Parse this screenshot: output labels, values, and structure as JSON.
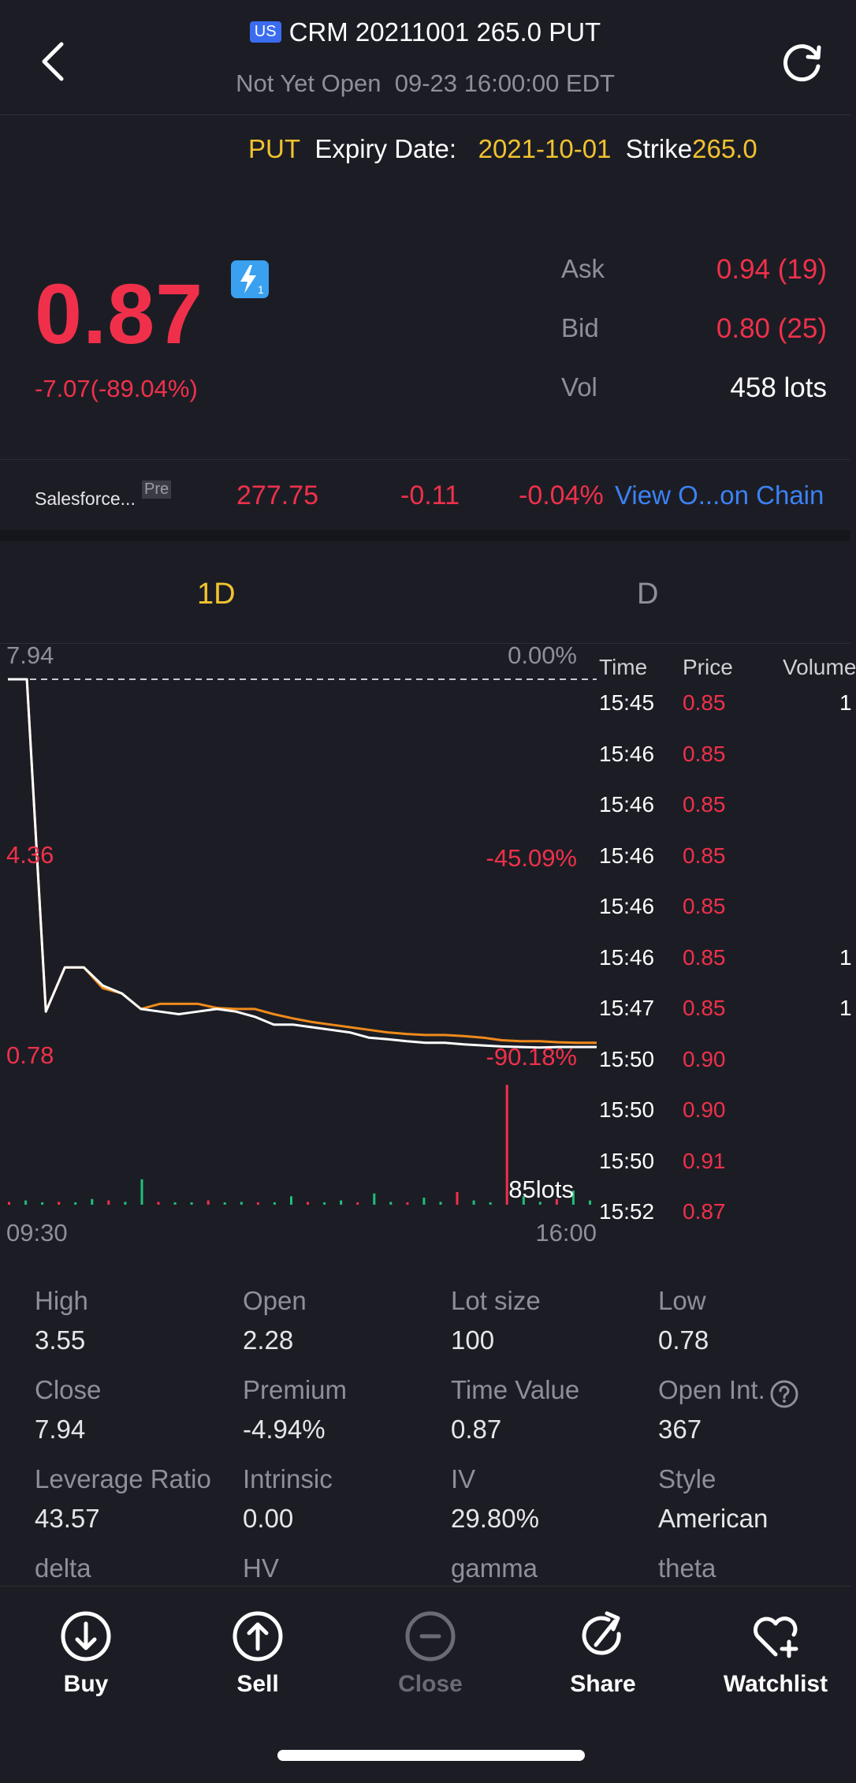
{
  "header": {
    "market_badge": "US",
    "title": "CRM 20211001 265.0 PUT",
    "status": "Not Yet Open",
    "datetime": "09-23 16:00:00 EDT"
  },
  "contract": {
    "type": "PUT",
    "expiry_label": "Expiry Date:",
    "expiry_value": "2021-10-01",
    "strike_label": "Strike",
    "strike_value": "265.0"
  },
  "quote": {
    "last": "0.87",
    "change": "-7.07(-89.04%)",
    "ask_label": "Ask",
    "ask_value": "0.94 (19)",
    "bid_label": "Bid",
    "bid_value": "0.80 (25)",
    "vol_label": "Vol",
    "vol_value": "458 lots",
    "lightning_badge": "1"
  },
  "underlying": {
    "name": "Salesforce...",
    "session_badge": "Pre",
    "price": "277.75",
    "change": "-0.11",
    "change_pct": "-0.04%",
    "chain_link": "View O...on Chain"
  },
  "tabs": [
    {
      "label": "1D",
      "active": true
    },
    {
      "label": "D",
      "active": false
    }
  ],
  "chart": {
    "y_top_label": "7.94",
    "y_top_pct": "0.00%",
    "y_mid_label": "4.36",
    "y_mid_pct": "-45.09%",
    "y_bottom_label": "0.78",
    "y_bottom_pct": "-90.18%",
    "volume_label": "85lots",
    "x_start": "09:30",
    "x_end": "16:00"
  },
  "chart_data": {
    "type": "line",
    "ylim": [
      0.78,
      7.94
    ],
    "prev_close": 7.94,
    "x_labels": [
      "09:30",
      "16:00"
    ],
    "series": [
      {
        "values": [
          7.94,
          7.94,
          1.55,
          2.4,
          2.4,
          2.0,
          1.9,
          1.6,
          1.7,
          1.7,
          1.7,
          1.62,
          1.6,
          1.6,
          1.5,
          1.42,
          1.35,
          1.3,
          1.25,
          1.2,
          1.15,
          1.12,
          1.1,
          1.1,
          1.08,
          1.05,
          1.0,
          0.98,
          0.98,
          0.96,
          0.95,
          0.95
        ]
      },
      {
        "values": [
          7.94,
          7.94,
          1.55,
          2.4,
          2.4,
          2.05,
          1.9,
          1.6,
          1.55,
          1.5,
          1.55,
          1.6,
          1.55,
          1.45,
          1.3,
          1.3,
          1.25,
          1.2,
          1.15,
          1.05,
          1.02,
          0.98,
          0.95,
          0.95,
          0.92,
          0.9,
          0.88,
          0.87,
          0.86,
          0.87,
          0.87,
          0.87
        ]
      }
    ],
    "volume": [
      2,
      3,
      1,
      2,
      1,
      4,
      3,
      2,
      18,
      2,
      1,
      1,
      3,
      1,
      2,
      1,
      1,
      6,
      2,
      1,
      3,
      1,
      8,
      2,
      1,
      5,
      2,
      9,
      3,
      1,
      85,
      6,
      2,
      4,
      10,
      3
    ]
  },
  "trades": {
    "headers": [
      "Time",
      "Price",
      "Volume"
    ],
    "rows": [
      {
        "time": "15:45",
        "price": "0.85",
        "vol": "1"
      },
      {
        "time": "15:46",
        "price": "0.85",
        "vol": ""
      },
      {
        "time": "15:46",
        "price": "0.85",
        "vol": ""
      },
      {
        "time": "15:46",
        "price": "0.85",
        "vol": ""
      },
      {
        "time": "15:46",
        "price": "0.85",
        "vol": ""
      },
      {
        "time": "15:46",
        "price": "0.85",
        "vol": "1"
      },
      {
        "time": "15:47",
        "price": "0.85",
        "vol": "1"
      },
      {
        "time": "15:50",
        "price": "0.90",
        "vol": ""
      },
      {
        "time": "15:50",
        "price": "0.90",
        "vol": ""
      },
      {
        "time": "15:50",
        "price": "0.91",
        "vol": ""
      },
      {
        "time": "15:52",
        "price": "0.87",
        "vol": ""
      }
    ]
  },
  "stats": [
    {
      "label": "High",
      "value": "3.55"
    },
    {
      "label": "Open",
      "value": "2.28"
    },
    {
      "label": "Lot size",
      "value": "100"
    },
    {
      "label": "Low",
      "value": "0.78"
    },
    {
      "label": "Close",
      "value": "7.94"
    },
    {
      "label": "Premium",
      "value": "-4.94%"
    },
    {
      "label": "Time Value",
      "value": "0.87"
    },
    {
      "label": "Open Int.",
      "value": "367"
    },
    {
      "label": "Leverage Ratio",
      "value": "43.57"
    },
    {
      "label": "Intrinsic",
      "value": "0.00"
    },
    {
      "label": "IV",
      "value": "29.80%"
    },
    {
      "label": "Style",
      "value": "American"
    },
    {
      "label": "delta",
      "value": ""
    },
    {
      "label": "HV",
      "value": ""
    },
    {
      "label": "gamma",
      "value": ""
    },
    {
      "label": "theta",
      "value": ""
    }
  ],
  "actions": [
    {
      "label": "Buy",
      "icon": "buy-icon"
    },
    {
      "label": "Sell",
      "icon": "sell-icon"
    },
    {
      "label": "Close",
      "icon": "close-position-icon"
    },
    {
      "label": "Share",
      "icon": "share-icon"
    },
    {
      "label": "Watchlist",
      "icon": "watchlist-heart-icon"
    }
  ],
  "colors": {
    "background": "#1c1d24",
    "down": "#f0304b",
    "accent_gold": "#f2c230",
    "link_blue": "#3b82f6",
    "line_price": "#ffffff",
    "line_avg": "#f08a1a",
    "vol_up": "#1fbf7a",
    "vol_down": "#f0304b"
  }
}
